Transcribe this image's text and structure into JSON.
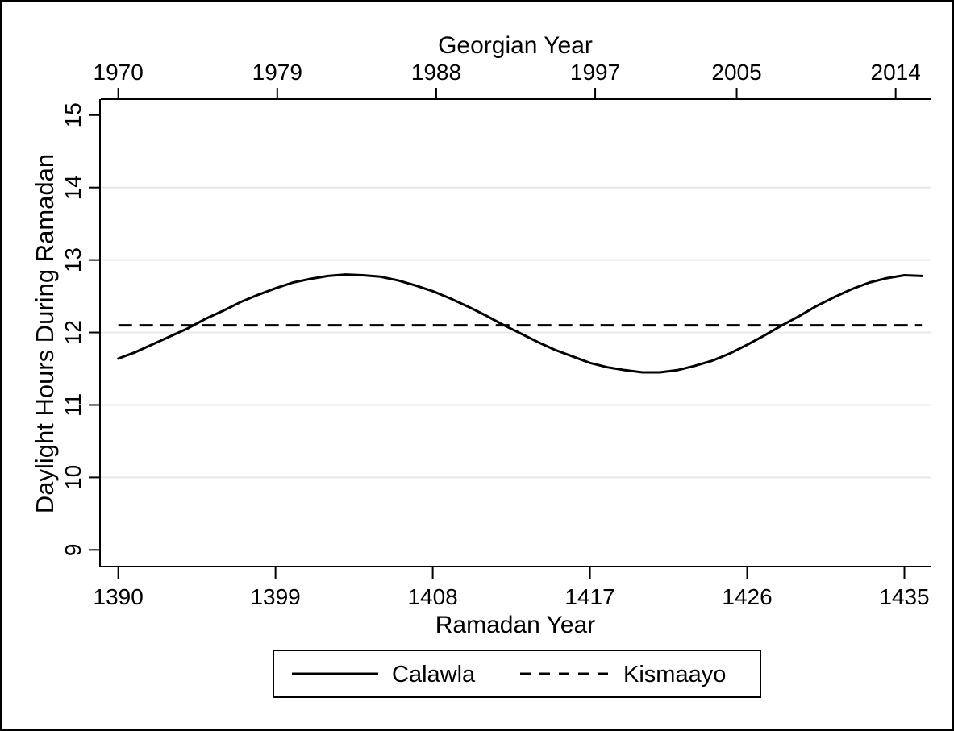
{
  "figure": {
    "background": "#ffffff",
    "border_color": "#000000"
  },
  "chart_data": {
    "type": "line",
    "title": "",
    "top_axis": {
      "label": "Georgian Year",
      "ticks": [
        {
          "label": "1970",
          "x": 1390.0
        },
        {
          "label": "1979",
          "x": 1399.1
        },
        {
          "label": "1988",
          "x": 1408.2
        },
        {
          "label": "1997",
          "x": 1417.3
        },
        {
          "label": "2005",
          "x": 1425.4
        },
        {
          "label": "2014",
          "x": 1434.5
        }
      ]
    },
    "bottom_axis": {
      "label": "Ramadan Year",
      "ticks": [
        {
          "label": "1390",
          "x": 1390
        },
        {
          "label": "1399",
          "x": 1399
        },
        {
          "label": "1408",
          "x": 1408
        },
        {
          "label": "1417",
          "x": 1417
        },
        {
          "label": "1426",
          "x": 1426
        },
        {
          "label": "1435",
          "x": 1435
        }
      ],
      "range": [
        1389.0,
        1436.5
      ]
    },
    "y_axis": {
      "label": "Daylight Hours During Ramadan",
      "ticks": [
        {
          "label": "9",
          "v": 9
        },
        {
          "label": "10",
          "v": 10
        },
        {
          "label": "11",
          "v": 11
        },
        {
          "label": "12",
          "v": 12
        },
        {
          "label": "13",
          "v": 13
        },
        {
          "label": "14",
          "v": 14
        },
        {
          "label": "15",
          "v": 15
        }
      ],
      "range": [
        8.77,
        15.22
      ],
      "gridlines": [
        10,
        11,
        12,
        13,
        14
      ]
    },
    "grid_color": "#e8e8e8",
    "line_color": "#000000",
    "series": [
      {
        "name": "Calawla",
        "line_style": "solid",
        "color": "#000000",
        "x": [
          1390,
          1391,
          1392,
          1393,
          1394,
          1395,
          1396,
          1397,
          1398,
          1399,
          1400,
          1401,
          1402,
          1403,
          1404,
          1405,
          1406,
          1407,
          1408,
          1409,
          1410,
          1411,
          1412,
          1413,
          1414,
          1415,
          1416,
          1417,
          1418,
          1419,
          1420,
          1421,
          1422,
          1423,
          1424,
          1425,
          1426,
          1427,
          1428,
          1429,
          1430,
          1431,
          1432,
          1433,
          1434,
          1435,
          1436
        ],
        "y": [
          11.64,
          11.73,
          11.84,
          11.95,
          12.06,
          12.19,
          12.3,
          12.42,
          12.52,
          12.61,
          12.69,
          12.74,
          12.78,
          12.8,
          12.79,
          12.77,
          12.72,
          12.65,
          12.57,
          12.47,
          12.36,
          12.24,
          12.11,
          11.99,
          11.87,
          11.76,
          11.67,
          11.58,
          11.52,
          11.48,
          11.45,
          11.45,
          11.48,
          11.54,
          11.61,
          11.71,
          11.83,
          11.96,
          12.1,
          12.23,
          12.37,
          12.49,
          12.6,
          12.69,
          12.75,
          12.79,
          12.78
        ]
      },
      {
        "name": "Kismaayo",
        "line_style": "dashed",
        "color": "#000000",
        "x": [
          1390,
          1436
        ],
        "y": [
          12.1,
          12.1
        ]
      }
    ],
    "legend": {
      "position": "bottom-center"
    }
  }
}
